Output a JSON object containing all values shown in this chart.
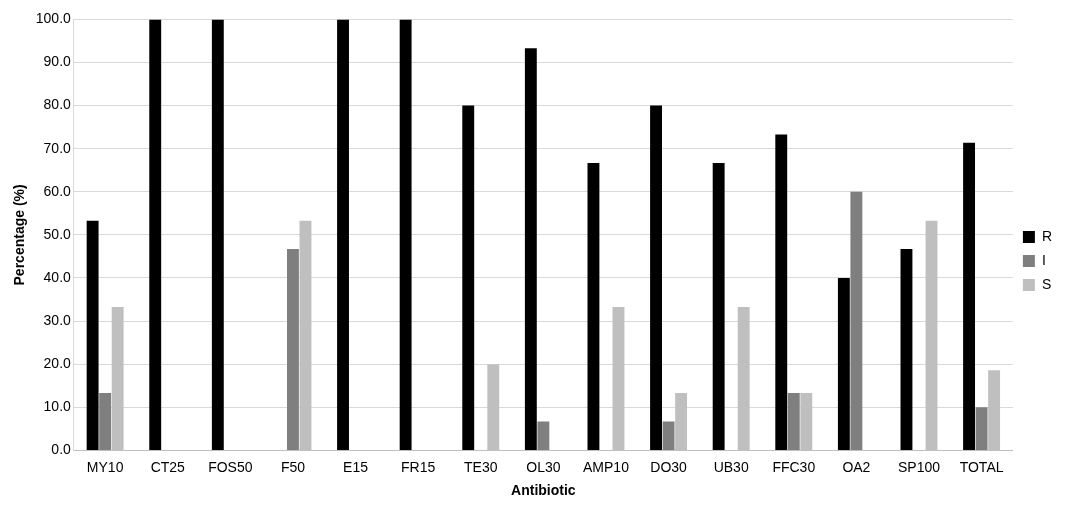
{
  "chart_data": {
    "type": "bar",
    "xlabel": "Antibiotic",
    "ylabel": "Percentage (%)",
    "categories": [
      "MY10",
      "CT25",
      "FOS50",
      "F50",
      "E15",
      "FR15",
      "TE30",
      "OL30",
      "AMP10",
      "DO30",
      "UB30",
      "FFC30",
      "OA2",
      "SP100",
      "TOTAL"
    ],
    "series": [
      {
        "name": "R",
        "color": "#000000",
        "values": [
          53.3,
          100,
          100,
          0,
          100,
          100,
          80,
          93.3,
          66.7,
          80,
          66.7,
          73.3,
          40,
          46.7,
          71.4
        ]
      },
      {
        "name": "I",
        "color": "#7f7f7f",
        "values": [
          13.3,
          0,
          0,
          46.7,
          0,
          0,
          0,
          6.7,
          0,
          6.7,
          0,
          13.3,
          60,
          0,
          10
        ]
      },
      {
        "name": "S",
        "color": "#bfbfbf",
        "values": [
          33.3,
          0,
          0,
          53.3,
          0,
          0,
          20,
          0,
          33.3,
          13.3,
          33.3,
          13.3,
          0,
          53.3,
          18.6
        ]
      }
    ],
    "ylim": [
      0,
      100
    ],
    "yticks": [
      {
        "value": 0,
        "label": "0.0"
      },
      {
        "value": 10,
        "label": "10.0"
      },
      {
        "value": 20,
        "label": "20.0"
      },
      {
        "value": 30,
        "label": "30.0"
      },
      {
        "value": 40,
        "label": "40.0"
      },
      {
        "value": 50,
        "label": "50.0"
      },
      {
        "value": 60,
        "label": "60.0"
      },
      {
        "value": 70,
        "label": "70.0"
      },
      {
        "value": 80,
        "label": "80.0"
      },
      {
        "value": 90,
        "label": "90.0"
      },
      {
        "value": 100,
        "label": "100.0"
      }
    ],
    "grid": "y",
    "legend": "right"
  }
}
